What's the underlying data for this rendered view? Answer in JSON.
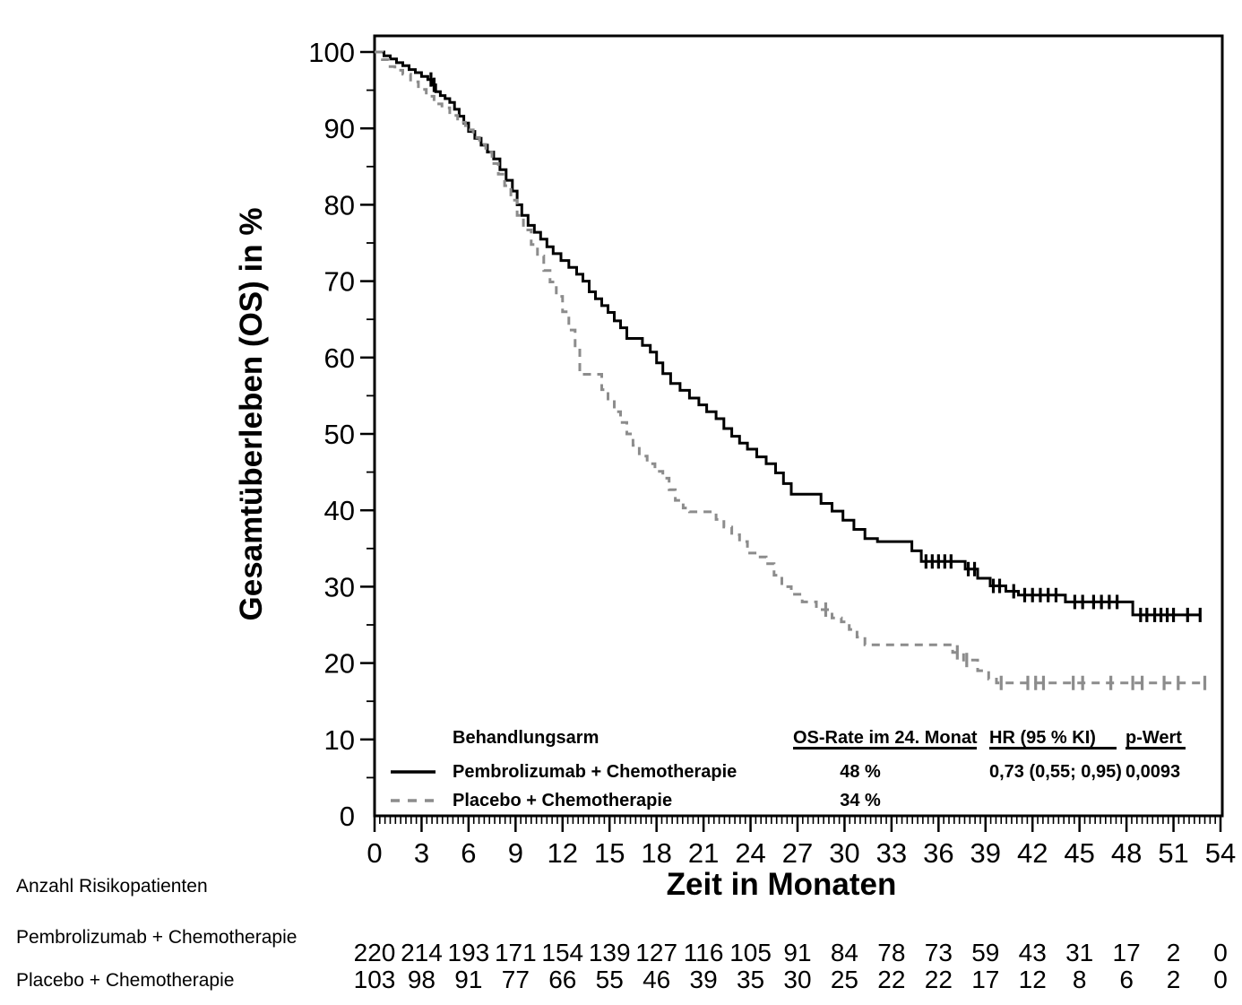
{
  "axes": {
    "x": {
      "label": "Zeit in Monaten",
      "min": 0,
      "max": 54,
      "major_step": 3,
      "ticks": [
        "0",
        "3",
        "6",
        "9",
        "12",
        "15",
        "18",
        "21",
        "24",
        "27",
        "30",
        "33",
        "36",
        "39",
        "42",
        "45",
        "48",
        "51",
        "54"
      ]
    },
    "y": {
      "label": "Gesamtüberleben (OS) in %",
      "min": 0,
      "max": 100,
      "major_step": 10,
      "minor_step": 5,
      "ticks": [
        "0",
        "10",
        "20",
        "30",
        "40",
        "50",
        "60",
        "70",
        "80",
        "90",
        "100"
      ]
    }
  },
  "legend_table": {
    "header": {
      "arm": "Behandlungsarm",
      "os_rate": "OS-Rate im 24. Monat",
      "hr": "HR (95 % KI)",
      "p": "p-Wert"
    },
    "rows": [
      {
        "arm": "Pembrolizumab + Chemotherapie",
        "os_rate": "48 %",
        "hr": "0,73 (0,55; 0,95)",
        "p": "0,0093"
      },
      {
        "arm": "Placebo + Chemotherapie",
        "os_rate": "34 %",
        "hr": "",
        "p": ""
      }
    ]
  },
  "risk_table": {
    "title": "Anzahl Risikopatienten",
    "timepoints": [
      0,
      3,
      6,
      9,
      12,
      15,
      18,
      21,
      24,
      27,
      30,
      33,
      36,
      39,
      42,
      45,
      48,
      51,
      54
    ],
    "rows": [
      {
        "label": "Pembrolizumab + Chemotherapie",
        "counts": [
          220,
          214,
          193,
          171,
          154,
          139,
          127,
          116,
          105,
          91,
          84,
          78,
          73,
          59,
          43,
          31,
          17,
          2,
          0
        ]
      },
      {
        "label": "Placebo + Chemotherapie",
        "counts": [
          103,
          98,
          91,
          77,
          66,
          55,
          46,
          39,
          35,
          30,
          25,
          22,
          22,
          17,
          12,
          8,
          6,
          2,
          0
        ]
      }
    ]
  },
  "chart_data": {
    "type": "line",
    "variant": "kaplan-meier-step",
    "title": "",
    "xlabel": "Zeit in Monaten",
    "ylabel": "Gesamtüberleben (OS) in %",
    "xlim": [
      0,
      54
    ],
    "ylim": [
      0,
      100
    ],
    "grid": false,
    "legend_position": "inside-bottom-left",
    "series": [
      {
        "id": "pembrolizumab",
        "name": "Pembrolizumab + Chemotherapie",
        "color": "#000000",
        "style": "solid",
        "os_rate_24m": 48,
        "hr": "0,73 (0,55; 0,95)",
        "p_value": "0,0093",
        "end_month": 52.7,
        "points": [
          [
            0.6,
            99.5
          ],
          [
            1.0,
            99.1
          ],
          [
            1.4,
            98.6
          ],
          [
            1.8,
            98.2
          ],
          [
            2.2,
            97.7
          ],
          [
            2.6,
            97.3
          ],
          [
            3.0,
            96.8
          ],
          [
            3.4,
            96.4
          ],
          [
            3.7,
            95.7
          ],
          [
            3.9,
            94.8
          ],
          [
            4.2,
            94.3
          ],
          [
            4.5,
            93.9
          ],
          [
            4.8,
            93.4
          ],
          [
            5.1,
            92.5
          ],
          [
            5.4,
            91.6
          ],
          [
            5.7,
            90.7
          ],
          [
            6.0,
            89.6
          ],
          [
            6.4,
            88.7
          ],
          [
            6.8,
            87.8
          ],
          [
            7.2,
            86.9
          ],
          [
            7.6,
            86.0
          ],
          [
            8.0,
            84.6
          ],
          [
            8.4,
            83.2
          ],
          [
            8.8,
            81.8
          ],
          [
            9.1,
            80.0
          ],
          [
            9.4,
            78.6
          ],
          [
            9.8,
            77.3
          ],
          [
            10.2,
            76.4
          ],
          [
            10.6,
            75.5
          ],
          [
            11.0,
            74.5
          ],
          [
            11.4,
            73.6
          ],
          [
            11.9,
            72.7
          ],
          [
            12.4,
            71.8
          ],
          [
            12.9,
            70.9
          ],
          [
            13.3,
            70.0
          ],
          [
            13.7,
            68.6
          ],
          [
            14.1,
            67.7
          ],
          [
            14.5,
            66.8
          ],
          [
            14.9,
            65.9
          ],
          [
            15.3,
            64.8
          ],
          [
            15.7,
            63.9
          ],
          [
            16.1,
            62.5
          ],
          [
            17.1,
            61.6
          ],
          [
            17.6,
            60.7
          ],
          [
            18.0,
            59.3
          ],
          [
            18.4,
            57.9
          ],
          [
            18.9,
            56.6
          ],
          [
            19.5,
            55.7
          ],
          [
            20.1,
            54.7
          ],
          [
            20.7,
            53.8
          ],
          [
            21.2,
            52.9
          ],
          [
            21.8,
            52.0
          ],
          [
            22.3,
            50.7
          ],
          [
            22.8,
            49.7
          ],
          [
            23.3,
            48.8
          ],
          [
            23.8,
            48.0
          ],
          [
            24.4,
            47.0
          ],
          [
            25.0,
            46.1
          ],
          [
            25.6,
            44.9
          ],
          [
            26.1,
            43.5
          ],
          [
            26.6,
            42.1
          ],
          [
            28.5,
            40.9
          ],
          [
            29.2,
            39.9
          ],
          [
            29.9,
            38.7
          ],
          [
            30.6,
            37.5
          ],
          [
            31.3,
            36.3
          ],
          [
            32.1,
            35.9
          ],
          [
            34.3,
            34.7
          ],
          [
            34.9,
            33.3
          ],
          [
            37.7,
            32.3
          ],
          [
            38.5,
            31.1
          ],
          [
            39.3,
            30.1
          ],
          [
            40.3,
            29.4
          ],
          [
            41.1,
            28.9
          ],
          [
            44.1,
            28.0
          ],
          [
            48.4,
            26.3
          ]
        ],
        "censors": [
          [
            3.6,
            96.4
          ],
          [
            3.8,
            95.7
          ],
          [
            35.2,
            33.3
          ],
          [
            35.6,
            33.3
          ],
          [
            36.0,
            33.3
          ],
          [
            36.4,
            33.3
          ],
          [
            36.8,
            33.3
          ],
          [
            37.9,
            32.3
          ],
          [
            38.3,
            32.3
          ],
          [
            39.5,
            30.1
          ],
          [
            39.9,
            30.1
          ],
          [
            40.8,
            29.4
          ],
          [
            41.5,
            28.9
          ],
          [
            42.0,
            28.9
          ],
          [
            42.5,
            28.9
          ],
          [
            43.0,
            28.9
          ],
          [
            43.5,
            28.9
          ],
          [
            44.7,
            28.0
          ],
          [
            45.2,
            28.0
          ],
          [
            45.9,
            28.0
          ],
          [
            46.4,
            28.0
          ],
          [
            46.9,
            28.0
          ],
          [
            47.4,
            28.0
          ],
          [
            48.9,
            26.3
          ],
          [
            49.3,
            26.3
          ],
          [
            49.8,
            26.3
          ],
          [
            50.2,
            26.3
          ],
          [
            50.6,
            26.3
          ],
          [
            51.0,
            26.3
          ],
          [
            51.9,
            26.3
          ],
          [
            52.7,
            26.3
          ]
        ]
      },
      {
        "id": "placebo",
        "name": "Placebo + Chemotherapie",
        "color": "#8c8c8c",
        "style": "dashed",
        "os_rate_24m": 34,
        "hr": "",
        "p_value": "",
        "end_month": 53.0,
        "points": [
          [
            0.5,
            99.0
          ],
          [
            0.9,
            98.1
          ],
          [
            1.3,
            97.6
          ],
          [
            1.8,
            97.1
          ],
          [
            2.3,
            96.1
          ],
          [
            2.8,
            95.1
          ],
          [
            3.3,
            94.2
          ],
          [
            3.8,
            93.2
          ],
          [
            4.3,
            92.7
          ],
          [
            4.8,
            91.7
          ],
          [
            5.3,
            90.8
          ],
          [
            5.8,
            89.8
          ],
          [
            6.3,
            88.8
          ],
          [
            6.7,
            87.9
          ],
          [
            7.1,
            86.9
          ],
          [
            7.5,
            85.4
          ],
          [
            7.9,
            84.0
          ],
          [
            8.3,
            82.5
          ],
          [
            8.7,
            80.6
          ],
          [
            9.1,
            78.6
          ],
          [
            9.5,
            76.7
          ],
          [
            10.0,
            74.8
          ],
          [
            10.4,
            73.3
          ],
          [
            10.8,
            71.4
          ],
          [
            11.2,
            69.9
          ],
          [
            11.6,
            68.0
          ],
          [
            12.0,
            66.0
          ],
          [
            12.4,
            63.6
          ],
          [
            12.8,
            61.2
          ],
          [
            13.1,
            57.8
          ],
          [
            14.5,
            55.8
          ],
          [
            14.9,
            54.4
          ],
          [
            15.3,
            52.9
          ],
          [
            15.7,
            51.5
          ],
          [
            16.1,
            50.0
          ],
          [
            16.5,
            48.5
          ],
          [
            16.9,
            47.1
          ],
          [
            17.4,
            46.1
          ],
          [
            17.9,
            45.1
          ],
          [
            18.4,
            44.2
          ],
          [
            18.8,
            42.7
          ],
          [
            19.2,
            41.3
          ],
          [
            19.7,
            40.3
          ],
          [
            20.1,
            39.8
          ],
          [
            21.8,
            38.8
          ],
          [
            22.3,
            37.8
          ],
          [
            22.8,
            36.8
          ],
          [
            23.3,
            35.9
          ],
          [
            23.8,
            34.4
          ],
          [
            24.4,
            33.9
          ],
          [
            25.0,
            33.0
          ],
          [
            25.5,
            31.5
          ],
          [
            26.0,
            30.0
          ],
          [
            26.6,
            29.0
          ],
          [
            27.3,
            28.0
          ],
          [
            28.2,
            27.0
          ],
          [
            29.2,
            25.9
          ],
          [
            29.8,
            25.4
          ],
          [
            30.3,
            24.4
          ],
          [
            30.8,
            23.4
          ],
          [
            31.3,
            22.4
          ],
          [
            36.9,
            21.4
          ],
          [
            37.6,
            20.4
          ],
          [
            38.5,
            19.0
          ],
          [
            39.2,
            17.9
          ],
          [
            39.7,
            17.4
          ]
        ],
        "censors": [
          [
            28.8,
            27.0
          ],
          [
            37.2,
            21.4
          ],
          [
            37.8,
            20.4
          ],
          [
            40.0,
            17.4
          ],
          [
            41.7,
            17.4
          ],
          [
            42.2,
            17.4
          ],
          [
            42.7,
            17.4
          ],
          [
            44.6,
            17.4
          ],
          [
            45.2,
            17.4
          ],
          [
            47.0,
            17.4
          ],
          [
            48.4,
            17.4
          ],
          [
            49.0,
            17.4
          ],
          [
            50.4,
            17.4
          ],
          [
            51.3,
            17.4
          ],
          [
            53.0,
            17.4
          ]
        ]
      }
    ]
  }
}
